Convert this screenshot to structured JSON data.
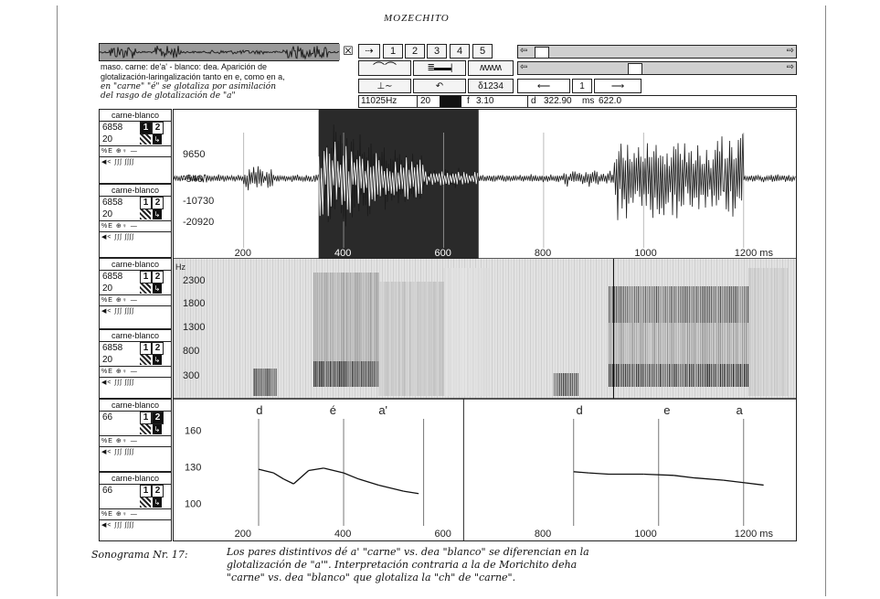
{
  "title": "MOZECHITO",
  "waveform_thumb_close": "☒",
  "toolbar": {
    "row1": [
      "⇢",
      "1",
      "2",
      "3",
      "4",
      "5"
    ],
    "row2_icons": [
      "curve-icon",
      "bars-icon",
      "wave-icon"
    ],
    "row3": [
      "⊥∼",
      "↶",
      "δ1234",
      "⟵",
      "1",
      "⟶"
    ]
  },
  "description": {
    "line1": "maso. carne: de'a' - blanco: dea. Aparición de",
    "line2": "glotalización-laringalización tanto en e, como en a,",
    "line3": "en \"carne\" \"é\" se glotaliza por asimilación",
    "line4": "del rasgo de glotalización de \"a\""
  },
  "status": {
    "rate": "11025Hz",
    "zoom": "20",
    "f_label": "f",
    "f_value": "3.10",
    "d_label": "d",
    "d_value": "322.90",
    "ms_label": "ms",
    "ms_value": "622.0"
  },
  "channels": [
    {
      "name": "carne-blanco",
      "v1": "6858",
      "v2": "20",
      "n1": "1",
      "n2": "2",
      "active": "1"
    },
    {
      "name": "carne-blanco",
      "v1": "6858",
      "v2": "20",
      "n1": "1",
      "n2": "2",
      "active": "none"
    },
    {
      "name": "carne-blanco",
      "v1": "6858",
      "v2": "20",
      "n1": "1",
      "n2": "2",
      "active": "none"
    },
    {
      "name": "carne-blanco",
      "v1": "6858",
      "v2": "20",
      "n1": "1",
      "n2": "2",
      "active": "none"
    },
    {
      "name": "carne-blanco",
      "v1": "66",
      "v2": "",
      "n1": "1",
      "n2": "2",
      "active": "2"
    },
    {
      "name": "carne-blanco",
      "v1": "66",
      "v2": "",
      "n1": "1",
      "n2": "2",
      "active": "none"
    }
  ],
  "ctrl_icons": "%E ⊕♀ —",
  "ctrl_icons2": "◀< ∫∫ʃ ʃʃʃʃ",
  "waveform": {
    "ylabels": [
      "9650",
      "-540",
      "-10730",
      "-20920"
    ],
    "xlabels": [
      "200",
      "400",
      "600",
      "800",
      "1000",
      "1200 ms"
    ]
  },
  "spectrogram": {
    "unit": "Hz",
    "ylabels": [
      "2300",
      "1800",
      "1300",
      "800",
      "300"
    ]
  },
  "pitch": {
    "ylabels": [
      "160",
      "130",
      "100"
    ],
    "xlabels": [
      "200",
      "400",
      "600",
      "800",
      "1000",
      "1200 ms"
    ],
    "segments": [
      "d",
      "é",
      "a'",
      "d",
      "e",
      "a"
    ]
  },
  "caption": {
    "lead": "Sonograma Nr. 17:",
    "line1": "Los pares distintivos dé a' \"carne\" vs. dea \"blanco\" se diferencian en la",
    "line2": "glotalización de \"a'\". Interpretación contraria a la de Morichito deha",
    "line3": "\"carne\" vs. dea \"blanco\" que glotaliza la \"ch\" de \"carne\"."
  },
  "chart_data": [
    {
      "type": "line",
      "xlabel": "ms",
      "xlim": [
        60,
        1290
      ],
      "ylim": [
        80,
        180
      ],
      "series": [
        {
          "x": [
            230,
            260,
            280,
            300,
            330,
            360,
            400,
            430,
            470,
            520,
            550
          ],
          "y": [
            128,
            125,
            120,
            116,
            127,
            129,
            125,
            120,
            115,
            110,
            108
          ]
        },
        {
          "x": [
            860,
            890,
            930,
            1000,
            1060,
            1100,
            1160,
            1200,
            1240
          ],
          "y": [
            126,
            125,
            124,
            124,
            123,
            121,
            119,
            117,
            115
          ]
        }
      ],
      "selection_ms": [
        350,
        670
      ]
    }
  ]
}
